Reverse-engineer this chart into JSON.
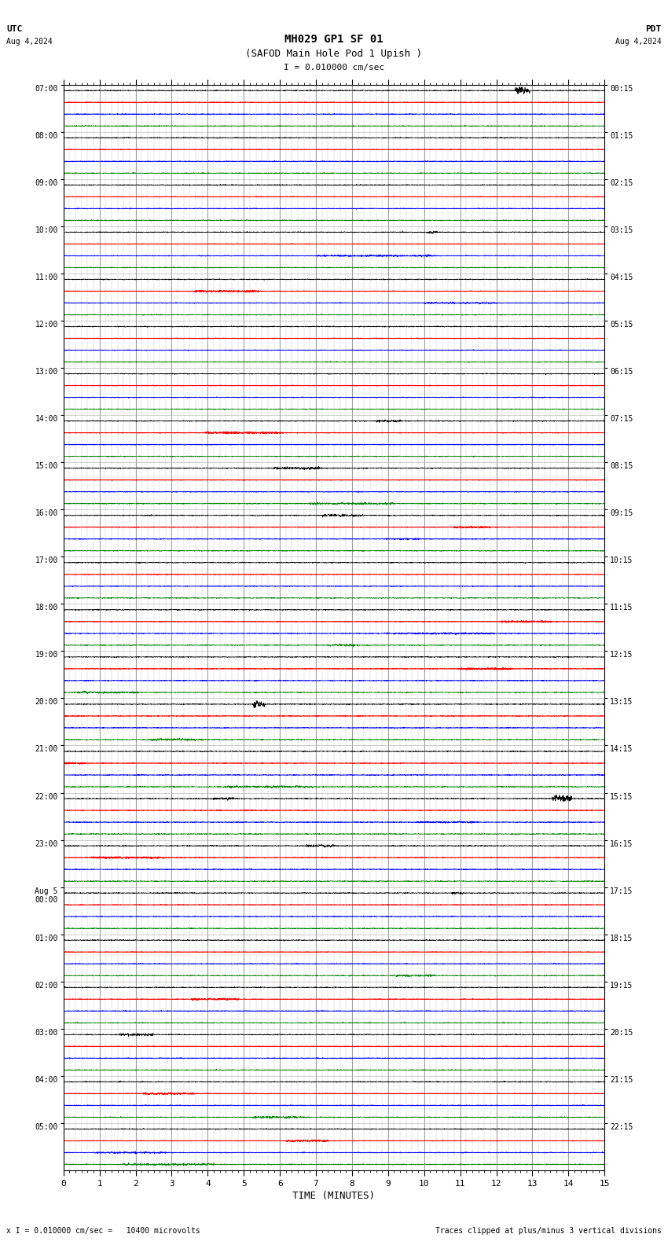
{
  "title_line1": "MH029 GP1 SF 01",
  "title_line2": "(SAFOD Main Hole Pod 1 Upish )",
  "scale_text": "I = 0.010000 cm/sec",
  "utc_label": "UTC",
  "date_left": "Aug 4,2024",
  "date_right": "Aug 4,2024",
  "pdt_label": "PDT",
  "footer_left": "x I = 0.010000 cm/sec =   10400 microvolts",
  "footer_right": "Traces clipped at plus/minus 3 vertical divisions",
  "xlabel": "TIME (MINUTES)",
  "xlim": [
    0,
    15
  ],
  "xticks": [
    0,
    1,
    2,
    3,
    4,
    5,
    6,
    7,
    8,
    9,
    10,
    11,
    12,
    13,
    14,
    15
  ],
  "n_hours": 23,
  "traces_per_row": 4,
  "color_map": [
    "black",
    "red",
    "blue",
    "green"
  ],
  "bg_color": "white",
  "seed": 42,
  "fig_width": 8.5,
  "fig_height": 15.84,
  "dpi": 100
}
